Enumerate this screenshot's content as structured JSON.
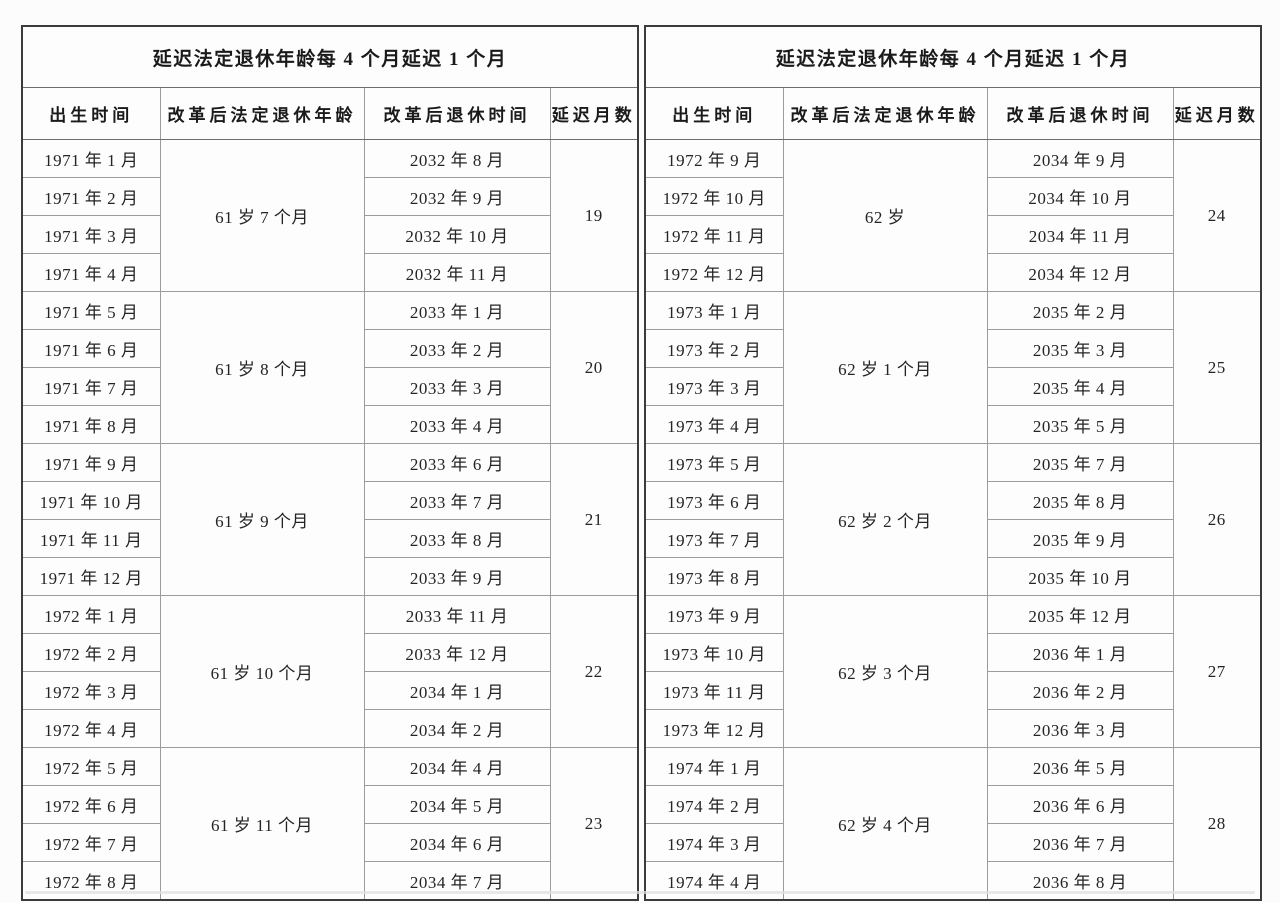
{
  "tables": [
    {
      "title": "延迟法定退休年龄每 4 个月延迟 1 个月",
      "headers": [
        "出生时间",
        "改革后法定退休年龄",
        "改革后退休时间",
        "延迟月数"
      ],
      "groups": [
        {
          "age": "61 岁 7 个月",
          "delay": "19",
          "rows": [
            {
              "birth": "1971 年 1 月",
              "retire": "2032 年 8 月"
            },
            {
              "birth": "1971 年 2 月",
              "retire": "2032 年 9 月"
            },
            {
              "birth": "1971 年 3 月",
              "retire": "2032 年 10 月"
            },
            {
              "birth": "1971 年 4 月",
              "retire": "2032 年 11 月"
            }
          ]
        },
        {
          "age": "61 岁 8 个月",
          "delay": "20",
          "rows": [
            {
              "birth": "1971 年 5 月",
              "retire": "2033 年 1 月"
            },
            {
              "birth": "1971 年 6 月",
              "retire": "2033 年 2 月"
            },
            {
              "birth": "1971 年 7 月",
              "retire": "2033 年 3 月"
            },
            {
              "birth": "1971 年 8 月",
              "retire": "2033 年 4 月"
            }
          ]
        },
        {
          "age": "61 岁 9 个月",
          "delay": "21",
          "rows": [
            {
              "birth": "1971 年 9 月",
              "retire": "2033 年 6 月"
            },
            {
              "birth": "1971 年 10 月",
              "retire": "2033 年 7 月"
            },
            {
              "birth": "1971 年 11 月",
              "retire": "2033 年 8 月"
            },
            {
              "birth": "1971 年 12 月",
              "retire": "2033 年 9 月"
            }
          ]
        },
        {
          "age": "61 岁 10 个月",
          "delay": "22",
          "rows": [
            {
              "birth": "1972 年 1 月",
              "retire": "2033 年 11 月"
            },
            {
              "birth": "1972 年 2 月",
              "retire": "2033 年 12 月"
            },
            {
              "birth": "1972 年 3 月",
              "retire": "2034 年 1 月"
            },
            {
              "birth": "1972 年 4 月",
              "retire": "2034 年 2 月"
            }
          ]
        },
        {
          "age": "61 岁 11 个月",
          "delay": "23",
          "rows": [
            {
              "birth": "1972 年 5 月",
              "retire": "2034 年 4 月"
            },
            {
              "birth": "1972 年 6 月",
              "retire": "2034 年 5 月"
            },
            {
              "birth": "1972 年 7 月",
              "retire": "2034 年 6 月"
            },
            {
              "birth": "1972 年 8 月",
              "retire": "2034 年 7 月"
            }
          ]
        }
      ]
    },
    {
      "title": "延迟法定退休年龄每 4 个月延迟 1 个月",
      "headers": [
        "出生时间",
        "改革后法定退休年龄",
        "改革后退休时间",
        "延迟月数"
      ],
      "groups": [
        {
          "age": "62 岁",
          "delay": "24",
          "rows": [
            {
              "birth": "1972 年 9 月",
              "retire": "2034 年 9 月"
            },
            {
              "birth": "1972 年 10 月",
              "retire": "2034 年 10 月"
            },
            {
              "birth": "1972 年 11 月",
              "retire": "2034 年 11 月"
            },
            {
              "birth": "1972 年 12 月",
              "retire": "2034 年 12 月"
            }
          ]
        },
        {
          "age": "62 岁 1 个月",
          "delay": "25",
          "rows": [
            {
              "birth": "1973 年 1 月",
              "retire": "2035 年 2 月"
            },
            {
              "birth": "1973 年 2 月",
              "retire": "2035 年 3 月"
            },
            {
              "birth": "1973 年 3 月",
              "retire": "2035 年 4 月"
            },
            {
              "birth": "1973 年 4 月",
              "retire": "2035 年 5 月"
            }
          ]
        },
        {
          "age": "62 岁 2 个月",
          "delay": "26",
          "rows": [
            {
              "birth": "1973 年 5 月",
              "retire": "2035 年 7 月"
            },
            {
              "birth": "1973 年 6 月",
              "retire": "2035 年 8 月"
            },
            {
              "birth": "1973 年 7 月",
              "retire": "2035 年 9 月"
            },
            {
              "birth": "1973 年 8 月",
              "retire": "2035 年 10 月"
            }
          ]
        },
        {
          "age": "62 岁 3 个月",
          "delay": "27",
          "rows": [
            {
              "birth": "1973 年 9 月",
              "retire": "2035 年 12 月"
            },
            {
              "birth": "1973 年 10 月",
              "retire": "2036 年 1 月"
            },
            {
              "birth": "1973 年 11 月",
              "retire": "2036 年 2 月"
            },
            {
              "birth": "1973 年 12 月",
              "retire": "2036 年 3 月"
            }
          ]
        },
        {
          "age": "62 岁 4 个月",
          "delay": "28",
          "rows": [
            {
              "birth": "1974 年 1 月",
              "retire": "2036 年 5 月"
            },
            {
              "birth": "1974 年 2 月",
              "retire": "2036 年 6 月"
            },
            {
              "birth": "1974 年 3 月",
              "retire": "2036 年 7 月"
            },
            {
              "birth": "1974 年 4 月",
              "retire": "2036 年 8 月"
            }
          ]
        }
      ]
    }
  ],
  "colors": {
    "outer_border": "#3b3b3b",
    "grid_line": "#9c9c9c",
    "text": "#242424",
    "background": "#fcfcfc"
  }
}
